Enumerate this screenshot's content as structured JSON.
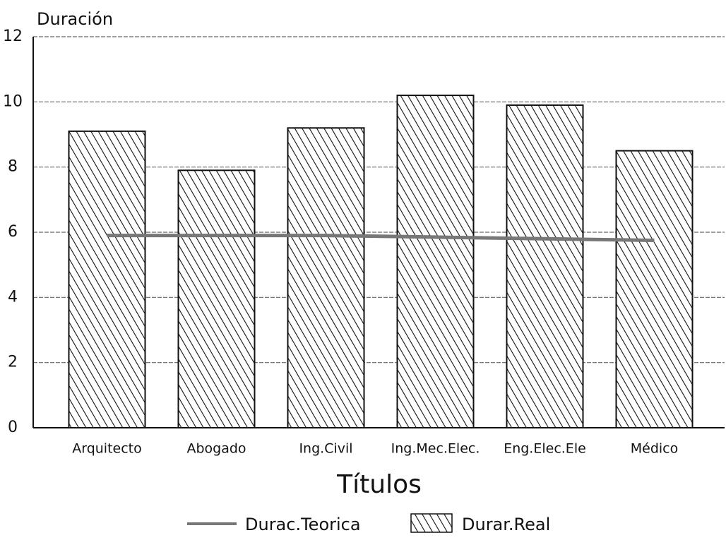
{
  "chart_data": {
    "type": "bar",
    "y_label": "Duración",
    "x_label": "Títulos",
    "categories": [
      "Arquitecto",
      "Abogado",
      "Ing.Civil",
      "Ing.Mec.Elec.",
      "Eng.Elec.Ele",
      "Médico"
    ],
    "series": [
      {
        "name": "Durac.Teorica",
        "type": "line",
        "color": "#777777",
        "values": [
          5.9,
          5.9,
          5.9,
          5.85,
          5.8,
          5.75
        ]
      },
      {
        "name": "Durar.Real",
        "type": "bar",
        "color": "#111111",
        "values": [
          9.1,
          7.9,
          9.2,
          10.2,
          9.9,
          8.5
        ]
      }
    ],
    "ylim": [
      0,
      12
    ],
    "yticks": [
      0,
      2,
      4,
      6,
      8,
      10,
      12
    ],
    "grid": true
  }
}
